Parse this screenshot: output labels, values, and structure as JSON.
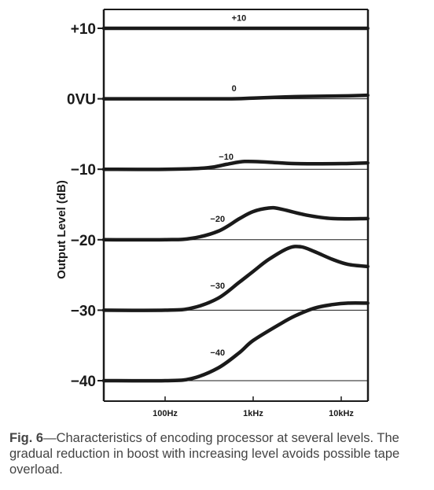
{
  "chart_data": {
    "type": "line",
    "ylabel": "Output Level (dB)",
    "xlabel": "",
    "x_scale": "log",
    "xlim": [
      10,
      20000
    ],
    "ylim": [
      -45,
      13
    ],
    "x_ticks": [
      {
        "label": "100Hz",
        "value": 100
      },
      {
        "label": "1kHz",
        "value": 1000
      },
      {
        "label": "10kHz",
        "value": 10000
      }
    ],
    "y_ticks": [
      {
        "label": "+10",
        "value": 10
      },
      {
        "label": "0VU",
        "value": 0
      },
      {
        "label": "−10",
        "value": -10
      },
      {
        "label": "−20",
        "value": -20
      },
      {
        "label": "−30",
        "value": -30
      },
      {
        "label": "−40",
        "value": -40
      }
    ],
    "reference_lines": [
      10,
      0,
      -10,
      -20,
      -30,
      -40
    ],
    "grid": false,
    "series": [
      {
        "name": "+10",
        "label_at": [
          700,
          11.5
        ],
        "points": [
          [
            10,
            10
          ],
          [
            100,
            10
          ],
          [
            1000,
            10
          ],
          [
            10000,
            10
          ],
          [
            20000,
            10
          ]
        ]
      },
      {
        "name": "0",
        "label_at": [
          700,
          1.5
        ],
        "points": [
          [
            10,
            0
          ],
          [
            100,
            0
          ],
          [
            500,
            0
          ],
          [
            1000,
            0.1
          ],
          [
            3000,
            0.3
          ],
          [
            10000,
            0.4
          ],
          [
            20000,
            0.5
          ]
        ]
      },
      {
        "name": "−10",
        "label_at": [
          500,
          -8.2
        ],
        "points": [
          [
            10,
            -10
          ],
          [
            100,
            -10
          ],
          [
            300,
            -9.8
          ],
          [
            500,
            -9.3
          ],
          [
            800,
            -8.9
          ],
          [
            1500,
            -9
          ],
          [
            3000,
            -9.2
          ],
          [
            10000,
            -9.2
          ],
          [
            20000,
            -9.1
          ]
        ]
      },
      {
        "name": "−20",
        "label_at": [
          400,
          -17
        ],
        "points": [
          [
            10,
            -20
          ],
          [
            100,
            -20
          ],
          [
            200,
            -19.8
          ],
          [
            400,
            -18.8
          ],
          [
            700,
            -17
          ],
          [
            1000,
            -16
          ],
          [
            1500,
            -15.5
          ],
          [
            2000,
            -15.6
          ],
          [
            4000,
            -16.5
          ],
          [
            8000,
            -17
          ],
          [
            20000,
            -17
          ]
        ]
      },
      {
        "name": "−30",
        "label_at": [
          400,
          -26.5
        ],
        "points": [
          [
            10,
            -30
          ],
          [
            100,
            -30
          ],
          [
            200,
            -29.7
          ],
          [
            400,
            -28.3
          ],
          [
            700,
            -26
          ],
          [
            1000,
            -24.5
          ],
          [
            1500,
            -22.8
          ],
          [
            2500,
            -21.2
          ],
          [
            3500,
            -21
          ],
          [
            5000,
            -21.7
          ],
          [
            8000,
            -22.8
          ],
          [
            12000,
            -23.5
          ],
          [
            20000,
            -23.8
          ]
        ]
      },
      {
        "name": "−40",
        "label_at": [
          400,
          -36
        ],
        "points": [
          [
            10,
            -40
          ],
          [
            100,
            -40
          ],
          [
            200,
            -39.7
          ],
          [
            400,
            -38.2
          ],
          [
            700,
            -36
          ],
          [
            1000,
            -34.3
          ],
          [
            2000,
            -32
          ],
          [
            3000,
            -30.8
          ],
          [
            5000,
            -29.7
          ],
          [
            8000,
            -29.2
          ],
          [
            12000,
            -29
          ],
          [
            20000,
            -29
          ]
        ]
      }
    ]
  },
  "caption": {
    "fig_label": "Fig. 6",
    "text": "—Characteristics of encoding processor at several levels. The gradual reduction in boost with increasing level avoids possible tape overload."
  }
}
